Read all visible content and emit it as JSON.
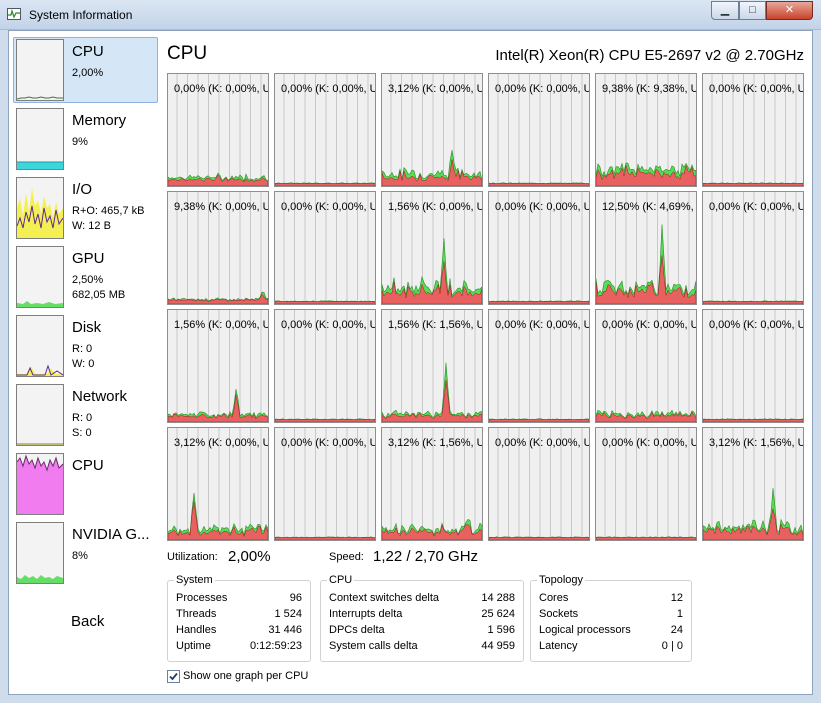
{
  "window": {
    "title": "System Information"
  },
  "nav": {
    "items": [
      {
        "label": "CPU",
        "lines": [
          "2,00%"
        ]
      },
      {
        "label": "Memory",
        "lines": [
          "9%"
        ]
      },
      {
        "label": "I/O",
        "lines": [
          "R+O: 465,7 kB",
          "W: 12 B"
        ]
      },
      {
        "label": "GPU",
        "lines": [
          "2,50%",
          "682,05 MB"
        ]
      },
      {
        "label": "Disk",
        "lines": [
          "R: 0",
          "W: 0"
        ]
      },
      {
        "label": "Network",
        "lines": [
          "R: 0",
          "S: 0"
        ]
      },
      {
        "label": "CPU",
        "lines": []
      },
      {
        "label": "NVIDIA G...",
        "lines": [
          "8%"
        ]
      }
    ],
    "back": "Back"
  },
  "main": {
    "title": "CPU",
    "model": "Intel(R) Xeon(R) CPU E5-2697 v2 @ 2.70GHz",
    "cores": [
      "0,00% (K: 0,00%, U",
      "0,00% (K: 0,00%, U",
      "3,12% (K: 0,00%, U",
      "0,00% (K: 0,00%, U",
      "9,38% (K: 9,38%, U",
      "0,00% (K: 0,00%, U",
      "9,38% (K: 0,00%, U",
      "0,00% (K: 0,00%, U",
      "1,56% (K: 0,00%, U",
      "0,00% (K: 0,00%, U",
      "12,50% (K: 4,69%, U",
      "0,00% (K: 0,00%, U",
      "1,56% (K: 0,00%, U",
      "0,00% (K: 0,00%, U",
      "1,56% (K: 1,56%, U",
      "0,00% (K: 0,00%, U",
      "0,00% (K: 0,00%, U",
      "0,00% (K: 0,00%, U",
      "3,12% (K: 0,00%, U",
      "0,00% (K: 0,00%, U",
      "3,12% (K: 1,56%, U",
      "0,00% (K: 0,00%, U",
      "0,00% (K: 0,00%, U",
      "3,12% (K: 1,56%, U"
    ],
    "utilization_label": "Utilization:",
    "utilization_value": "2,00%",
    "speed_label": "Speed:",
    "speed_value": "1,22 / 2,70 GHz"
  },
  "groups": {
    "system": {
      "title": "System",
      "rows": [
        {
          "k": "Processes",
          "v": "96"
        },
        {
          "k": "Threads",
          "v": "1 524"
        },
        {
          "k": "Handles",
          "v": "31 446"
        },
        {
          "k": "Uptime",
          "v": "0:12:59:23"
        }
      ]
    },
    "cpu": {
      "title": "CPU",
      "rows": [
        {
          "k": "Context switches delta",
          "v": "14 288"
        },
        {
          "k": "Interrupts delta",
          "v": "25 624"
        },
        {
          "k": "DPCs delta",
          "v": "1 596"
        },
        {
          "k": "System calls delta",
          "v": "44 959"
        }
      ]
    },
    "topology": {
      "title": "Topology",
      "rows": [
        {
          "k": "Cores",
          "v": "12"
        },
        {
          "k": "Sockets",
          "v": "1"
        },
        {
          "k": "Logical processors",
          "v": "24"
        },
        {
          "k": "Latency",
          "v": "0 | 0"
        }
      ]
    }
  },
  "options": {
    "one_graph_per_cpu": "Show one graph per CPU",
    "one_graph_checked": true
  },
  "colors": {
    "kernel": "#e86060",
    "user": "#55dd55",
    "grid": "#c8c8c8",
    "selected": "#d5e6f7"
  }
}
